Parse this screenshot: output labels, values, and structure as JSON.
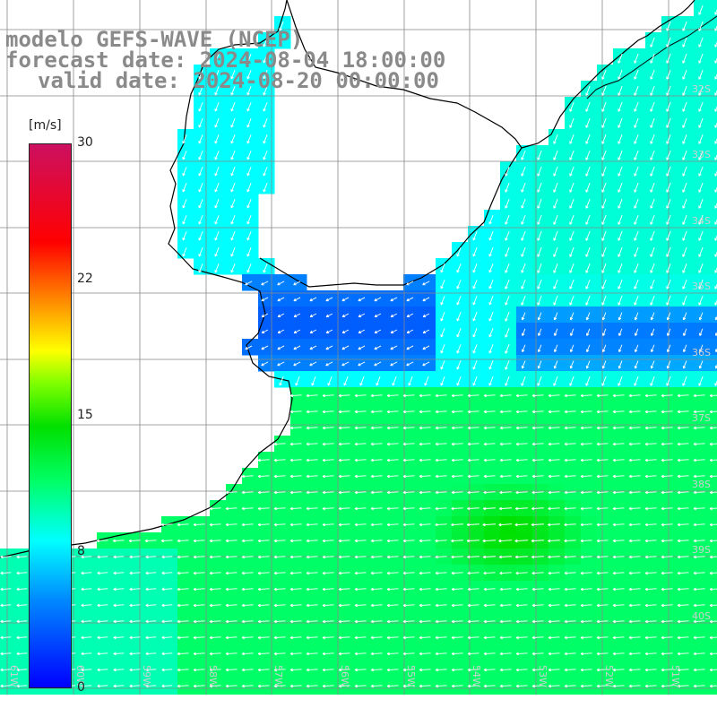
{
  "title": {
    "line1": "modelo GEFS-WAVE (NCEP)",
    "line2": "forecast date: 2024-08-04 18:00:00",
    "line3": "valid date: 2024-08-20 00:00:00"
  },
  "colorbar": {
    "unit": "[m/s]",
    "ticks": [
      {
        "label": "30",
        "value": 30
      },
      {
        "label": "22",
        "value": 22
      },
      {
        "label": "15",
        "value": 15
      },
      {
        "label": "8",
        "value": 8
      },
      {
        "label": "0",
        "value": 0
      }
    ],
    "range": [
      0,
      30
    ]
  },
  "grid": {
    "lat_labels": [
      "32S",
      "33S",
      "34S",
      "35S",
      "36S",
      "37S",
      "38S",
      "39S",
      "40S"
    ],
    "lon_labels": [
      "61W",
      "60W",
      "59W",
      "58W",
      "57W",
      "56W",
      "55W",
      "54W",
      "53W",
      "52W",
      "51W"
    ]
  },
  "colors": {
    "land": "#ffffff",
    "coast": "#000000",
    "grid": "#888888",
    "title": "#8a8a8a",
    "arrows": "#ffffff"
  }
}
